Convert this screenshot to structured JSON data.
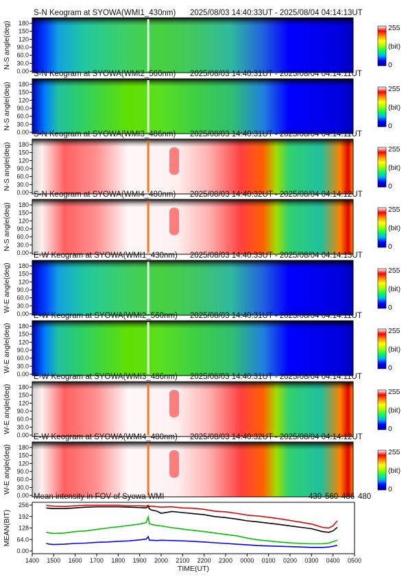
{
  "chart_data": {
    "keograms": [
      {
        "title": "S-N Keogram at SYOWA(WMI1_430nm)",
        "period": "2025/08/03 14:40:33UT - 2025/08/04 04:14:13UT",
        "ylabel": "N-S angle(deg)",
        "profile": "g430"
      },
      {
        "title": "S-N Keogram at SYOWA(WMI2_560nm)",
        "period": "2025/08/03 14:40:31UT - 2025/08/04 04:14:11UT",
        "ylabel": "N-S angle(deg)",
        "profile": "g560"
      },
      {
        "title": "S-N Keogram at SYOWA(WMI3_486nm)",
        "period": "2025/08/03 14:40:31UT - 2025/08/04 04:14:11UT",
        "ylabel": "N-S angle(deg)",
        "profile": "sat"
      },
      {
        "title": "S-N Keogram at SYOWA(WMI4_480nm)",
        "period": "2025/08/03 14:40:32UT - 2025/08/04 04:14:12UT",
        "ylabel": "N-S angle(deg)",
        "profile": "sat"
      },
      {
        "title": "E-W Keogram at SYOWA(WMI1_430nm)",
        "period": "2025/08/03 14:40:33UT - 2025/08/04 04:14:13UT",
        "ylabel": "W-E angle(deg)",
        "profile": "g430"
      },
      {
        "title": "E-W Keogram at SYOWA(WMI2_560nm)",
        "period": "2025/08/03 14:40:31UT - 2025/08/04 04:14:11UT",
        "ylabel": "W-E angle(deg)",
        "profile": "g560"
      },
      {
        "title": "E-W Keogram at SYOWA(WMI3_486nm)",
        "period": "2025/08/03 14:40:31UT - 2025/08/04 04:14:11UT",
        "ylabel": "W-E angle(deg)",
        "profile": "sat"
      },
      {
        "title": "E-W Keogram at SYOWA(WMI4_480nm)",
        "period": "2025/08/03 14:40:32UT - 2025/08/04 04:14:12UT",
        "ylabel": "W-E angle(deg)",
        "profile": "sat"
      }
    ],
    "keogram_yticks": [
      "0.00",
      "30.0",
      "60.0",
      "90.0",
      "120",
      "150",
      "180"
    ],
    "keogram_ylim": [
      0,
      180
    ],
    "colorbar": {
      "min": "0",
      "max": "255",
      "unit": "(bit)",
      "colors": [
        "#0000a0",
        "#0000ff",
        "#00b0ff",
        "#00ff60",
        "#a0ff00",
        "#ffff00",
        "#ff9000",
        "#ff0000",
        "#ffffff"
      ]
    },
    "line_plot": {
      "type": "line",
      "title": "Mean intensity in FOV of Syowa WMI",
      "xlabel": "TIME(UT)",
      "ylabel": "MEAN(BIT)",
      "xticks": [
        "1400",
        "1500",
        "1600",
        "1700",
        "1800",
        "1900",
        "2000",
        "2100",
        "2200",
        "2300",
        "0000",
        "0100",
        "0200",
        "0300",
        "0400",
        "0500"
      ],
      "yticks": [
        "0.00",
        "64.0",
        "128",
        "192",
        "256"
      ],
      "ylim": [
        0,
        256
      ],
      "series": [
        {
          "name": "430",
          "color": "#0000ff",
          "x": [
            14.65,
            14.8,
            15.0,
            15.5,
            16.0,
            16.5,
            17.0,
            17.5,
            18.0,
            18.5,
            19.0,
            19.3,
            19.4,
            19.45,
            19.55,
            19.8,
            20.0,
            20.5,
            21.0,
            21.5,
            22.0,
            22.5,
            23.0,
            23.5,
            24.0,
            24.5,
            25.0,
            25.5,
            26.0,
            26.5,
            27.0,
            27.5,
            27.8,
            28.0,
            28.2
          ],
          "values": [
            42,
            38,
            36,
            38,
            42,
            44,
            48,
            50,
            54,
            56,
            62,
            66,
            80,
            60,
            60,
            58,
            60,
            58,
            56,
            54,
            50,
            46,
            42,
            38,
            34,
            30,
            28,
            26,
            24,
            22,
            20,
            20,
            22,
            26,
            32
          ]
        },
        {
          "name": "560",
          "color": "#00c000",
          "x": [
            14.65,
            14.8,
            15.0,
            15.5,
            16.0,
            16.5,
            17.0,
            17.5,
            18.0,
            18.5,
            19.0,
            19.3,
            19.4,
            19.45,
            19.55,
            19.8,
            20.0,
            20.5,
            21.0,
            21.5,
            22.0,
            22.5,
            23.0,
            23.5,
            24.0,
            24.5,
            25.0,
            25.5,
            26.0,
            26.5,
            27.0,
            27.5,
            27.8,
            28.0,
            28.2
          ],
          "values": [
            105,
            100,
            98,
            100,
            108,
            112,
            120,
            128,
            135,
            142,
            150,
            158,
            190,
            152,
            148,
            142,
            140,
            130,
            122,
            115,
            108,
            100,
            92,
            85,
            72,
            62,
            56,
            50,
            45,
            42,
            40,
            40,
            44,
            52,
            60
          ]
        },
        {
          "name": "486",
          "color": "#e00000",
          "x": [
            14.65,
            14.8,
            15.0,
            15.5,
            16.0,
            16.5,
            17.0,
            17.5,
            18.0,
            18.5,
            19.0,
            19.3,
            19.4,
            19.45,
            19.55,
            19.8,
            20.0,
            20.5,
            21.0,
            21.5,
            22.0,
            22.5,
            23.0,
            23.5,
            24.0,
            24.5,
            25.0,
            25.5,
            26.0,
            26.5,
            27.0,
            27.5,
            27.8,
            28.0,
            28.2
          ],
          "values": [
            255,
            252,
            250,
            248,
            252,
            255,
            255,
            255,
            255,
            252,
            252,
            250,
            255,
            248,
            250,
            246,
            244,
            246,
            240,
            238,
            232,
            222,
            218,
            210,
            200,
            195,
            188,
            180,
            170,
            160,
            150,
            132,
            128,
            140,
            168
          ]
        },
        {
          "name": "480",
          "color": "#000000",
          "x": [
            14.65,
            14.8,
            15.0,
            15.5,
            16.0,
            16.5,
            17.0,
            17.5,
            18.0,
            18.5,
            19.0,
            19.3,
            19.4,
            19.45,
            19.55,
            19.8,
            20.0,
            20.5,
            21.0,
            21.5,
            22.0,
            22.5,
            23.0,
            23.5,
            24.0,
            24.5,
            25.0,
            25.5,
            26.0,
            26.5,
            27.0,
            27.5,
            27.8,
            28.0,
            28.2
          ],
          "values": [
            240,
            238,
            236,
            236,
            240,
            244,
            246,
            246,
            246,
            244,
            242,
            240,
            248,
            235,
            228,
            222,
            210,
            220,
            214,
            208,
            202,
            192,
            186,
            178,
            168,
            162,
            155,
            148,
            140,
            132,
            124,
            108,
            104,
            112,
            132
          ]
        }
      ]
    }
  }
}
